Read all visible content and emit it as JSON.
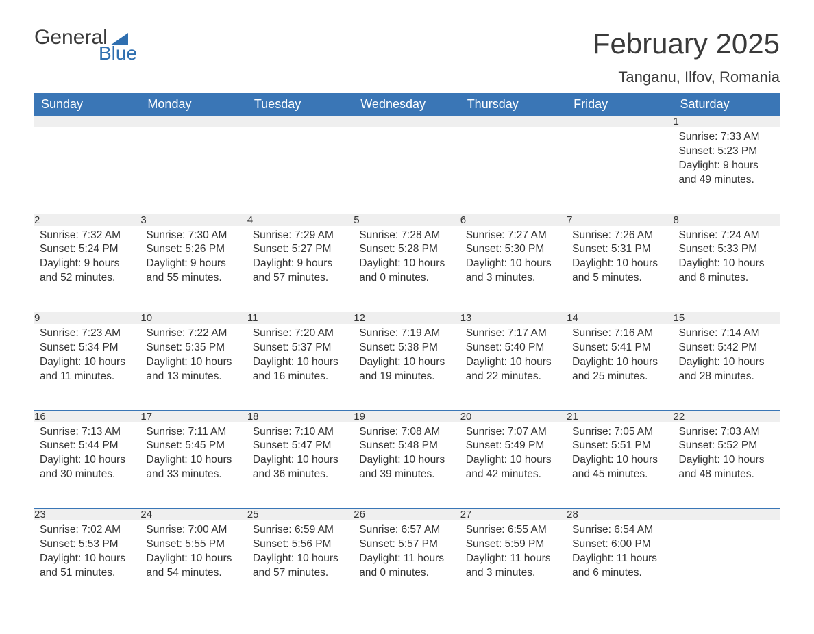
{
  "logo": {
    "word1": "General",
    "word2": "Blue",
    "flag_color": "#2f6fb0"
  },
  "title": "February 2025",
  "location": "Tanganu, Ilfov, Romania",
  "colors": {
    "header_bg": "#3a76b6",
    "header_text": "#ffffff",
    "daynum_bg": "#efefef",
    "rule": "#3a76b6",
    "body_text": "#333333",
    "title_text": "#3a3a3a"
  },
  "weekdays": [
    "Sunday",
    "Monday",
    "Tuesday",
    "Wednesday",
    "Thursday",
    "Friday",
    "Saturday"
  ],
  "weeks": [
    [
      null,
      null,
      null,
      null,
      null,
      null,
      {
        "n": "1",
        "sr": "7:33 AM",
        "ss": "5:23 PM",
        "dl": "9 hours and 49 minutes."
      }
    ],
    [
      {
        "n": "2",
        "sr": "7:32 AM",
        "ss": "5:24 PM",
        "dl": "9 hours and 52 minutes."
      },
      {
        "n": "3",
        "sr": "7:30 AM",
        "ss": "5:26 PM",
        "dl": "9 hours and 55 minutes."
      },
      {
        "n": "4",
        "sr": "7:29 AM",
        "ss": "5:27 PM",
        "dl": "9 hours and 57 minutes."
      },
      {
        "n": "5",
        "sr": "7:28 AM",
        "ss": "5:28 PM",
        "dl": "10 hours and 0 minutes."
      },
      {
        "n": "6",
        "sr": "7:27 AM",
        "ss": "5:30 PM",
        "dl": "10 hours and 3 minutes."
      },
      {
        "n": "7",
        "sr": "7:26 AM",
        "ss": "5:31 PM",
        "dl": "10 hours and 5 minutes."
      },
      {
        "n": "8",
        "sr": "7:24 AM",
        "ss": "5:33 PM",
        "dl": "10 hours and 8 minutes."
      }
    ],
    [
      {
        "n": "9",
        "sr": "7:23 AM",
        "ss": "5:34 PM",
        "dl": "10 hours and 11 minutes."
      },
      {
        "n": "10",
        "sr": "7:22 AM",
        "ss": "5:35 PM",
        "dl": "10 hours and 13 minutes."
      },
      {
        "n": "11",
        "sr": "7:20 AM",
        "ss": "5:37 PM",
        "dl": "10 hours and 16 minutes."
      },
      {
        "n": "12",
        "sr": "7:19 AM",
        "ss": "5:38 PM",
        "dl": "10 hours and 19 minutes."
      },
      {
        "n": "13",
        "sr": "7:17 AM",
        "ss": "5:40 PM",
        "dl": "10 hours and 22 minutes."
      },
      {
        "n": "14",
        "sr": "7:16 AM",
        "ss": "5:41 PM",
        "dl": "10 hours and 25 minutes."
      },
      {
        "n": "15",
        "sr": "7:14 AM",
        "ss": "5:42 PM",
        "dl": "10 hours and 28 minutes."
      }
    ],
    [
      {
        "n": "16",
        "sr": "7:13 AM",
        "ss": "5:44 PM",
        "dl": "10 hours and 30 minutes."
      },
      {
        "n": "17",
        "sr": "7:11 AM",
        "ss": "5:45 PM",
        "dl": "10 hours and 33 minutes."
      },
      {
        "n": "18",
        "sr": "7:10 AM",
        "ss": "5:47 PM",
        "dl": "10 hours and 36 minutes."
      },
      {
        "n": "19",
        "sr": "7:08 AM",
        "ss": "5:48 PM",
        "dl": "10 hours and 39 minutes."
      },
      {
        "n": "20",
        "sr": "7:07 AM",
        "ss": "5:49 PM",
        "dl": "10 hours and 42 minutes."
      },
      {
        "n": "21",
        "sr": "7:05 AM",
        "ss": "5:51 PM",
        "dl": "10 hours and 45 minutes."
      },
      {
        "n": "22",
        "sr": "7:03 AM",
        "ss": "5:52 PM",
        "dl": "10 hours and 48 minutes."
      }
    ],
    [
      {
        "n": "23",
        "sr": "7:02 AM",
        "ss": "5:53 PM",
        "dl": "10 hours and 51 minutes."
      },
      {
        "n": "24",
        "sr": "7:00 AM",
        "ss": "5:55 PM",
        "dl": "10 hours and 54 minutes."
      },
      {
        "n": "25",
        "sr": "6:59 AM",
        "ss": "5:56 PM",
        "dl": "10 hours and 57 minutes."
      },
      {
        "n": "26",
        "sr": "6:57 AM",
        "ss": "5:57 PM",
        "dl": "11 hours and 0 minutes."
      },
      {
        "n": "27",
        "sr": "6:55 AM",
        "ss": "5:59 PM",
        "dl": "11 hours and 3 minutes."
      },
      {
        "n": "28",
        "sr": "6:54 AM",
        "ss": "6:00 PM",
        "dl": "11 hours and 6 minutes."
      },
      null
    ]
  ],
  "labels": {
    "sunrise": "Sunrise: ",
    "sunset": "Sunset: ",
    "daylight": "Daylight: "
  }
}
